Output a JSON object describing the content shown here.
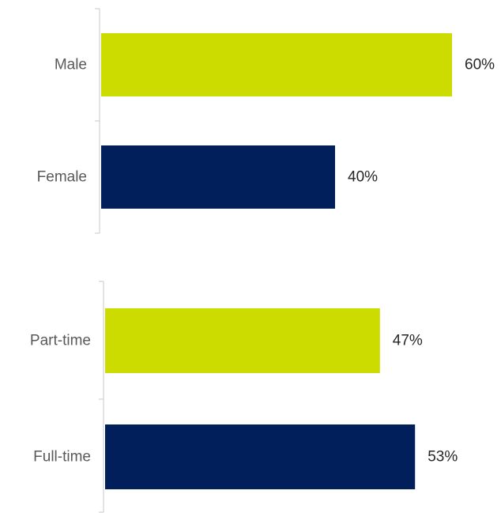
{
  "chart_data": [
    {
      "type": "bar",
      "orientation": "horizontal",
      "categories": [
        "Male",
        "Female"
      ],
      "values": [
        60,
        40
      ],
      "value_labels": [
        "60%",
        "40%"
      ],
      "colors": [
        "#cddc00",
        "#001f5b"
      ],
      "xlim": [
        0,
        70
      ],
      "title": "",
      "xlabel": "",
      "ylabel": "",
      "grid": false,
      "legend": "none"
    },
    {
      "type": "bar",
      "orientation": "horizontal",
      "categories": [
        "Part-time",
        "Full-time"
      ],
      "values": [
        47,
        53
      ],
      "value_labels": [
        "47%",
        "53%"
      ],
      "colors": [
        "#cddc00",
        "#001f5b"
      ],
      "xlim": [
        0,
        70
      ],
      "title": "",
      "xlabel": "",
      "ylabel": "",
      "grid": false,
      "legend": "none"
    }
  ]
}
